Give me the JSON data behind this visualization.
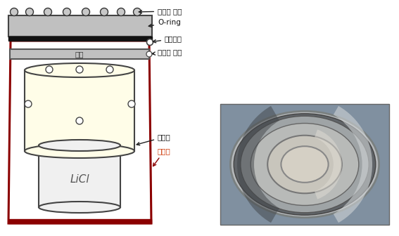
{
  "bg_color": "#ffffff",
  "labels": {
    "screw": "고정용 나사",
    "oring": "O-ring",
    "vacuum_pump": "진공펜프",
    "transport_ring": "운반용 고리",
    "mica": "운모",
    "crucible": "도가니",
    "furnace": "고온로",
    "licl": "LiCl"
  },
  "colors": {
    "outer_vessel_stroke": "#8B0000",
    "outer_vessel_fill": "#ffffff",
    "lid_fill": "#c0c0c0",
    "lid_stroke": "#444444",
    "black_seal": "#111111",
    "mica_fill": "#c0c0c0",
    "mica_stroke": "#555555",
    "inner_vessel_fill": "#fffde8",
    "inner_vessel_stroke": "#444444",
    "crucible_fill": "#f0f0f0",
    "crucible_stroke": "#444444",
    "screw_fill": "#c8c8c8",
    "screw_stroke": "#333333",
    "arrow_color": "#222222",
    "furnace_arrow_color": "#8B0000",
    "furnace_label_color": "#cc3300",
    "licl_color": "#555555"
  },
  "fontsize": 7.5
}
